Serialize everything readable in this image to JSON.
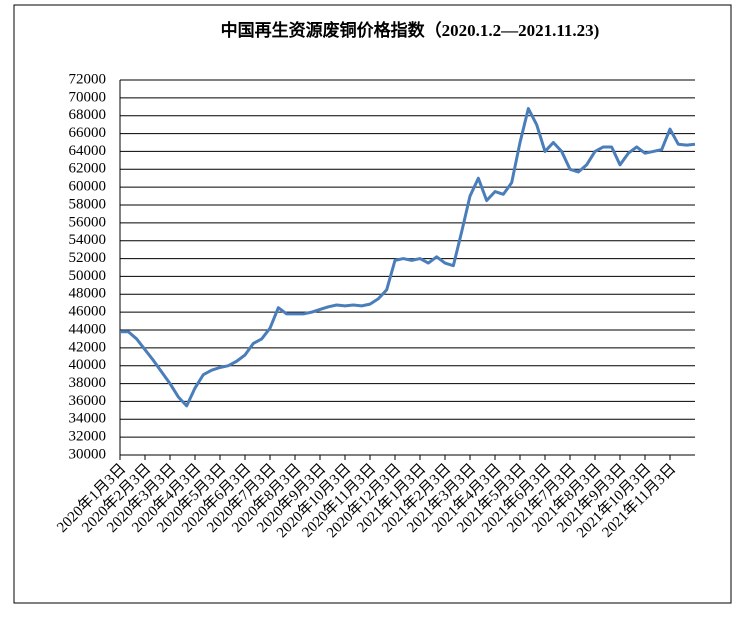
{
  "chart_data": {
    "type": "line",
    "title": "中国再生资源废铜价格指数（2020.1.2—2021.11.23)",
    "categories": [
      "2020年1月3日",
      null,
      null,
      "2020年2月3日",
      null,
      null,
      "2020年3月3日",
      null,
      null,
      "2020年4月3日",
      null,
      null,
      "2020年5月3日",
      null,
      null,
      "2020年6月3日",
      null,
      null,
      "2020年7月3日",
      null,
      null,
      "2020年8月3日",
      null,
      null,
      "2020年9月3日",
      null,
      null,
      "2020年10月3日",
      null,
      null,
      "2020年11月3日",
      null,
      null,
      "2020年12月3日",
      null,
      null,
      "2021年1月3日",
      null,
      null,
      "2021年2月3日",
      null,
      null,
      "2021年3月3日",
      null,
      null,
      "2021年4月3日",
      null,
      null,
      "2021年5月3日",
      null,
      null,
      "2021年6月3日",
      null,
      null,
      "2021年7月3日",
      null,
      null,
      "2021年8月3日",
      null,
      null,
      "2021年9月3日",
      null,
      null,
      "2021年10月3日",
      null,
      null,
      "2021年11月3日",
      null,
      null,
      null
    ],
    "series": [
      {
        "name": "废铜价格指数",
        "color": "#4a7ebb",
        "values": [
          43800,
          43800,
          43000,
          41800,
          40600,
          39300,
          38000,
          36500,
          35500,
          37500,
          39000,
          39500,
          39800,
          40000,
          40500,
          41200,
          42500,
          43000,
          44200,
          46500,
          45800,
          45800,
          45800,
          46000,
          46300,
          46600,
          46800,
          46700,
          46800,
          46700,
          46900,
          47500,
          48500,
          51800,
          52000,
          51800,
          52000,
          51500,
          52200,
          51500,
          51200,
          55000,
          59000,
          61000,
          58500,
          59500,
          59200,
          60500,
          65000,
          68800,
          67000,
          64000,
          65000,
          64000,
          62000,
          61700,
          62500,
          64000,
          64500,
          64500,
          62500,
          63800,
          64500,
          63800,
          64000,
          64200,
          66500,
          64800,
          64700,
          64800
        ]
      }
    ],
    "ylim": [
      30000,
      72000
    ],
    "yticks": [
      30000,
      32000,
      34000,
      36000,
      38000,
      40000,
      42000,
      44000,
      46000,
      48000,
      50000,
      52000,
      54000,
      56000,
      58000,
      60000,
      62000,
      64000,
      66000,
      68000,
      70000,
      72000
    ],
    "grid": true
  }
}
